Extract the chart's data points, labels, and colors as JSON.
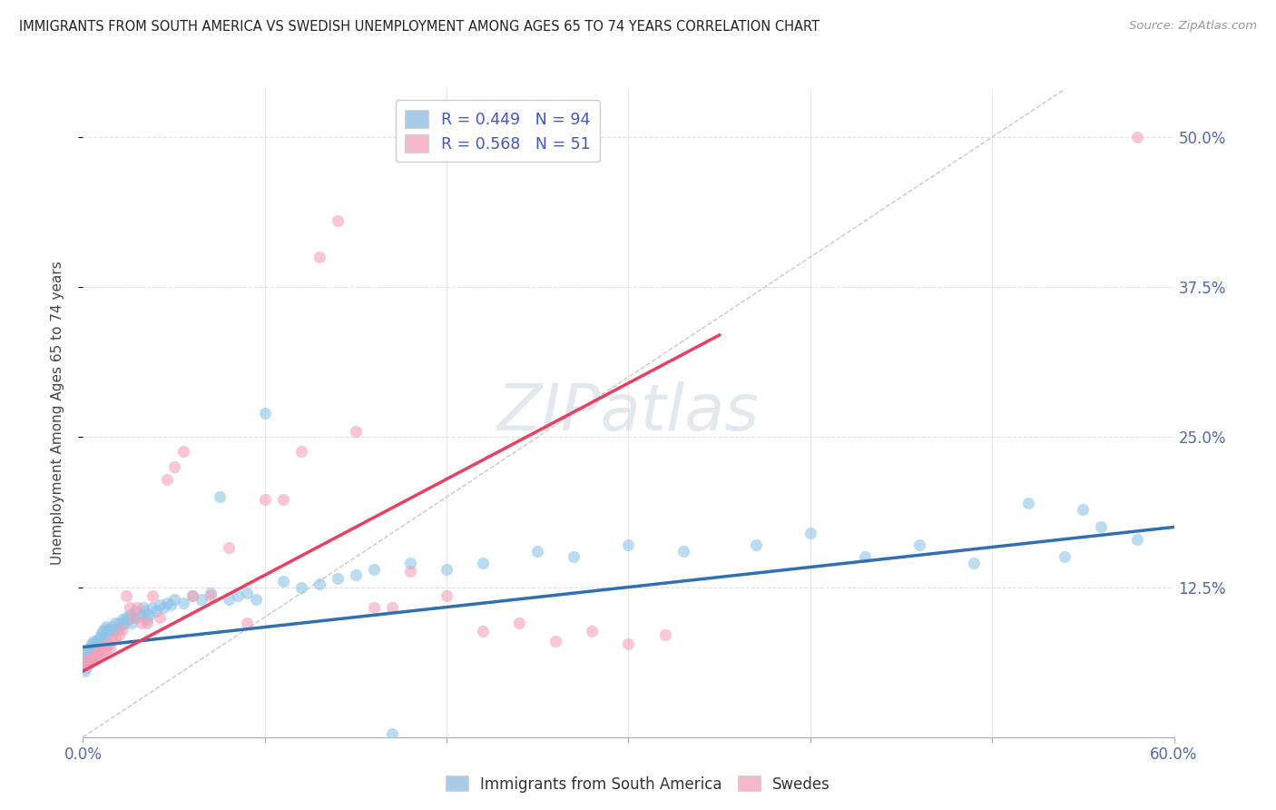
{
  "title": "IMMIGRANTS FROM SOUTH AMERICA VS SWEDISH UNEMPLOYMENT AMONG AGES 65 TO 74 YEARS CORRELATION CHART",
  "source": "Source: ZipAtlas.com",
  "ylabel": "Unemployment Among Ages 65 to 74 years",
  "ylabel_right_ticks": [
    "50.0%",
    "37.5%",
    "25.0%",
    "12.5%"
  ],
  "ylabel_right_vals": [
    0.5,
    0.375,
    0.25,
    0.125
  ],
  "xlim": [
    0.0,
    0.6
  ],
  "ylim": [
    0.0,
    0.54
  ],
  "blue_scatter_x": [
    0.001,
    0.001,
    0.002,
    0.002,
    0.002,
    0.003,
    0.003,
    0.003,
    0.004,
    0.004,
    0.004,
    0.005,
    0.005,
    0.005,
    0.006,
    0.006,
    0.006,
    0.007,
    0.007,
    0.008,
    0.008,
    0.009,
    0.009,
    0.01,
    0.01,
    0.011,
    0.011,
    0.012,
    0.012,
    0.013,
    0.013,
    0.014,
    0.015,
    0.016,
    0.017,
    0.018,
    0.019,
    0.02,
    0.021,
    0.022,
    0.023,
    0.024,
    0.025,
    0.026,
    0.027,
    0.028,
    0.029,
    0.03,
    0.032,
    0.033,
    0.034,
    0.035,
    0.036,
    0.038,
    0.04,
    0.042,
    0.044,
    0.046,
    0.048,
    0.05,
    0.055,
    0.06,
    0.065,
    0.07,
    0.075,
    0.08,
    0.085,
    0.09,
    0.095,
    0.1,
    0.11,
    0.12,
    0.13,
    0.14,
    0.15,
    0.16,
    0.17,
    0.18,
    0.2,
    0.22,
    0.25,
    0.27,
    0.3,
    0.33,
    0.37,
    0.4,
    0.43,
    0.46,
    0.49,
    0.52,
    0.54,
    0.55,
    0.56,
    0.58
  ],
  "blue_scatter_y": [
    0.055,
    0.062,
    0.058,
    0.065,
    0.07,
    0.06,
    0.068,
    0.072,
    0.063,
    0.07,
    0.075,
    0.065,
    0.07,
    0.078,
    0.068,
    0.073,
    0.08,
    0.07,
    0.075,
    0.072,
    0.08,
    0.075,
    0.082,
    0.078,
    0.085,
    0.08,
    0.088,
    0.082,
    0.09,
    0.085,
    0.092,
    0.088,
    0.09,
    0.092,
    0.088,
    0.095,
    0.09,
    0.095,
    0.092,
    0.098,
    0.095,
    0.1,
    0.098,
    0.102,
    0.095,
    0.1,
    0.105,
    0.1,
    0.102,
    0.108,
    0.105,
    0.098,
    0.102,
    0.108,
    0.105,
    0.11,
    0.108,
    0.112,
    0.11,
    0.115,
    0.112,
    0.118,
    0.115,
    0.12,
    0.2,
    0.115,
    0.118,
    0.12,
    0.115,
    0.27,
    0.13,
    0.125,
    0.128,
    0.132,
    0.135,
    0.14,
    0.003,
    0.145,
    0.14,
    0.145,
    0.155,
    0.15,
    0.16,
    0.155,
    0.16,
    0.17,
    0.15,
    0.16,
    0.145,
    0.195,
    0.15,
    0.19,
    0.175,
    0.165
  ],
  "pink_scatter_x": [
    0.001,
    0.002,
    0.003,
    0.004,
    0.005,
    0.006,
    0.007,
    0.008,
    0.009,
    0.01,
    0.011,
    0.012,
    0.013,
    0.014,
    0.015,
    0.016,
    0.018,
    0.02,
    0.022,
    0.024,
    0.026,
    0.028,
    0.03,
    0.032,
    0.035,
    0.038,
    0.042,
    0.046,
    0.05,
    0.055,
    0.06,
    0.07,
    0.08,
    0.09,
    0.1,
    0.11,
    0.12,
    0.13,
    0.14,
    0.15,
    0.16,
    0.17,
    0.18,
    0.2,
    0.22,
    0.24,
    0.26,
    0.28,
    0.3,
    0.32,
    0.58
  ],
  "pink_scatter_y": [
    0.06,
    0.063,
    0.062,
    0.065,
    0.063,
    0.068,
    0.065,
    0.07,
    0.068,
    0.072,
    0.07,
    0.075,
    0.073,
    0.078,
    0.075,
    0.08,
    0.082,
    0.085,
    0.09,
    0.118,
    0.108,
    0.1,
    0.108,
    0.095,
    0.095,
    0.118,
    0.1,
    0.215,
    0.225,
    0.238,
    0.118,
    0.118,
    0.158,
    0.095,
    0.198,
    0.198,
    0.238,
    0.4,
    0.43,
    0.255,
    0.108,
    0.108,
    0.138,
    0.118,
    0.088,
    0.095,
    0.08,
    0.088,
    0.078,
    0.085,
    0.5
  ],
  "blue_line_x": [
    0.0,
    0.6
  ],
  "blue_line_y": [
    0.075,
    0.175
  ],
  "pink_line_x": [
    0.0,
    0.35
  ],
  "pink_line_y": [
    0.055,
    0.335
  ],
  "diag_line_x": [
    0.0,
    0.54
  ],
  "diag_line_y": [
    0.0,
    0.54
  ],
  "blue_color": "#8ec4e8",
  "pink_color": "#f4a0b8",
  "blue_line_color": "#3070b0",
  "pink_line_color": "#e8406080",
  "diag_line_color": "#c8c8c8",
  "bg_color": "#ffffff",
  "grid_color": "#e0e0e0",
  "watermark_color": "#d8dde8",
  "legend_blue_label": "R = 0.449   N = 94",
  "legend_pink_label": "R = 0.568   N = 51",
  "legend_blue_color": "#a8cce8",
  "legend_pink_color": "#f4b8c8",
  "bottom_legend_blue": "Immigrants from South America",
  "bottom_legend_pink": "Swedes"
}
